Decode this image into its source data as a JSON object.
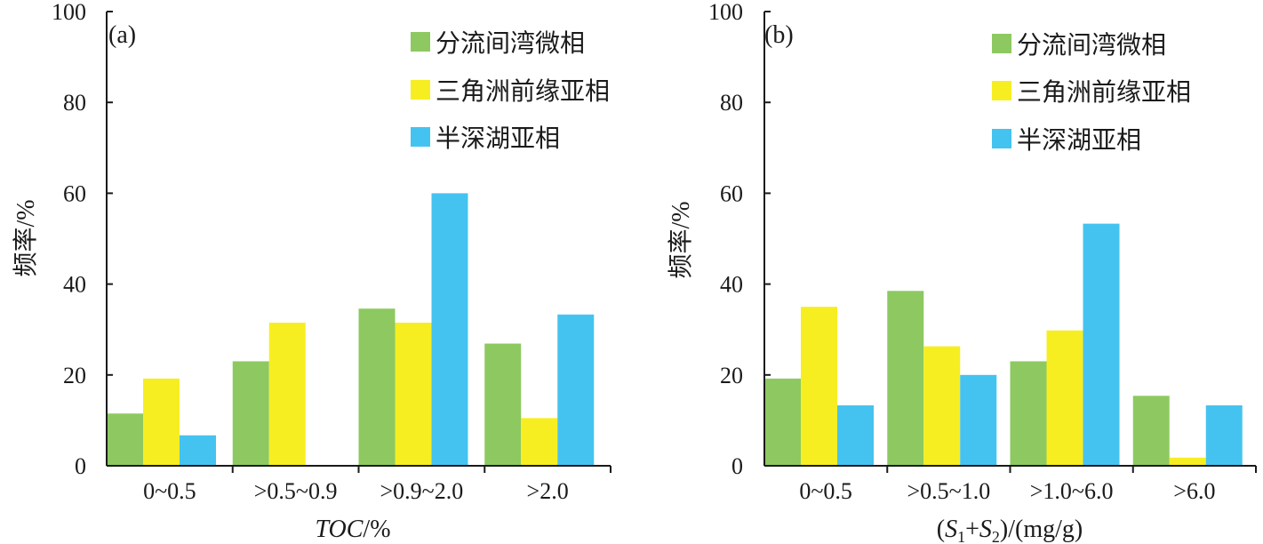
{
  "chart_data": [
    {
      "type": "bar",
      "panel_label": "(a)",
      "categories": [
        "0~0.5",
        ">0.5~0.9",
        ">0.9~2.0",
        ">2.0"
      ],
      "series": [
        {
          "name": "分流间湾微相",
          "color": "#8dc960",
          "values": [
            11.5,
            23,
            34.6,
            26.9
          ]
        },
        {
          "name": "三角洲前缘亚相",
          "color": "#f7ee22",
          "values": [
            19.2,
            31.5,
            31.5,
            10.5
          ]
        },
        {
          "name": "半深湖亚相",
          "color": "#45c3f0",
          "values": [
            6.7,
            0,
            60,
            33.3
          ]
        }
      ],
      "xlabel": {
        "italic": "TOC",
        "rest": "/%"
      },
      "ylabel": "频率/%",
      "ylim": [
        0,
        100
      ],
      "yticks": [
        0,
        20,
        40,
        60,
        80,
        100
      ],
      "legend": "top-right",
      "grid": false
    },
    {
      "type": "bar",
      "panel_label": "(b)",
      "categories": [
        "0~0.5",
        ">0.5~1.0",
        ">1.0~6.0",
        ">6.0"
      ],
      "series": [
        {
          "name": "分流间湾微相",
          "color": "#8dc960",
          "values": [
            19.2,
            38.5,
            23,
            15.4
          ]
        },
        {
          "name": "三角洲前缘亚相",
          "color": "#f7ee22",
          "values": [
            35,
            26.3,
            29.8,
            1.8
          ]
        },
        {
          "name": "半深湖亚相",
          "color": "#45c3f0",
          "values": [
            13.3,
            20,
            53.3,
            13.3
          ]
        }
      ],
      "xlabel": {
        "parts": [
          "(",
          "S",
          "1",
          "+",
          "S",
          "2",
          ")/(mg/g)"
        ]
      },
      "ylabel": "频率/%",
      "ylim": [
        0,
        100
      ],
      "yticks": [
        0,
        20,
        40,
        60,
        80,
        100
      ],
      "legend": "top-right",
      "grid": false
    }
  ]
}
